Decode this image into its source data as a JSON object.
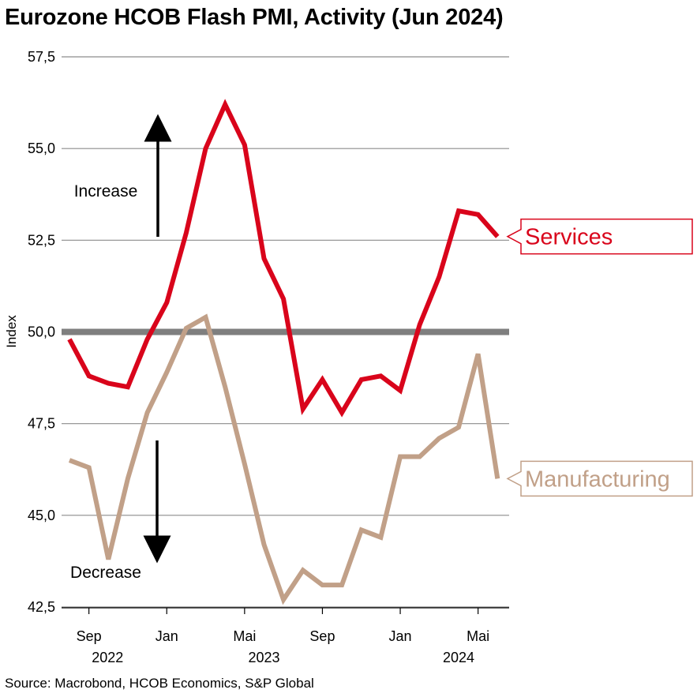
{
  "title": "Eurozone HCOB Flash PMI, Activity (Jun 2024)",
  "source": "Source: Macrobond, HCOB Economics, S&P Global",
  "chart_data": {
    "type": "line",
    "ylabel": "Index",
    "ylim": [
      42.5,
      57.5
    ],
    "yticks": [
      "57,5",
      "55,0",
      "52,5",
      "50,0",
      "47,5",
      "45,0",
      "42,5"
    ],
    "ytick_values": [
      57.5,
      55.0,
      52.5,
      50.0,
      47.5,
      45.0,
      42.5
    ],
    "reference_line": 50.0,
    "x_tick_labels": [
      "Sep",
      "Jan",
      "Mai",
      "Sep",
      "Jan",
      "Mai"
    ],
    "x_tick_dates": [
      "2022-09",
      "2023-01",
      "2023-05",
      "2023-09",
      "2024-01",
      "2024-05"
    ],
    "x_year_labels": [
      "2022",
      "2023",
      "2024"
    ],
    "x_year_dates": [
      "2022-10",
      "2023-06",
      "2024-04"
    ],
    "x": [
      "2022-08",
      "2022-09",
      "2022-10",
      "2022-11",
      "2022-12",
      "2023-01",
      "2023-02",
      "2023-03",
      "2023-04",
      "2023-05",
      "2023-06",
      "2023-07",
      "2023-08",
      "2023-09",
      "2023-10",
      "2023-11",
      "2023-12",
      "2024-01",
      "2024-02",
      "2024-03",
      "2024-04",
      "2024-05",
      "2024-06"
    ],
    "series": [
      {
        "name": "Services",
        "color": "#d9041b",
        "values": [
          49.8,
          48.8,
          48.6,
          48.5,
          49.8,
          50.8,
          52.7,
          55.0,
          56.2,
          55.1,
          52.0,
          50.9,
          47.9,
          48.7,
          47.8,
          48.7,
          48.8,
          48.4,
          50.2,
          51.5,
          53.3,
          53.2,
          52.6
        ]
      },
      {
        "name": "Manufacturing",
        "color": "#c1a088",
        "values": [
          46.5,
          46.3,
          43.8,
          46.0,
          47.8,
          48.9,
          50.1,
          50.4,
          48.5,
          46.4,
          44.2,
          42.7,
          43.5,
          43.1,
          43.1,
          44.6,
          44.4,
          46.6,
          46.6,
          47.1,
          47.4,
          49.4,
          46.0
        ]
      }
    ],
    "annotations": [
      {
        "text": "Increase",
        "direction": "up"
      },
      {
        "text": "Decrease",
        "direction": "down"
      }
    ],
    "grid": true,
    "legend": "right, inline labels at line ends"
  }
}
